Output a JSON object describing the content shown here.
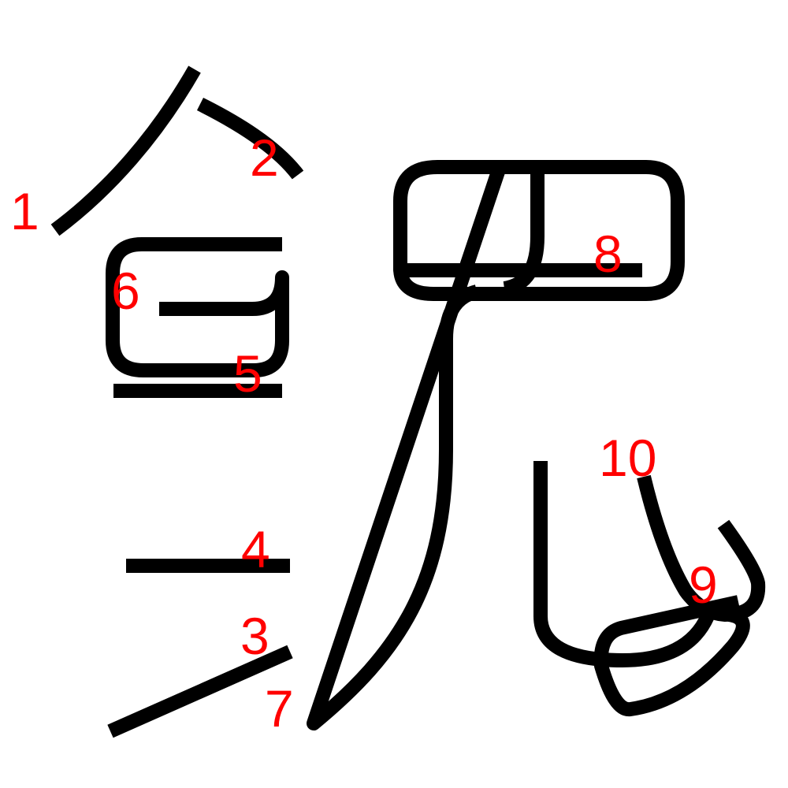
{
  "colors": {
    "background": "#ffffff",
    "stroke": "#000000",
    "label": "#ff0000"
  },
  "strokes": [
    {
      "number": "1"
    },
    {
      "number": "2"
    },
    {
      "number": "3"
    },
    {
      "number": "4"
    },
    {
      "number": "5"
    },
    {
      "number": "6"
    },
    {
      "number": "7"
    },
    {
      "number": "8"
    },
    {
      "number": "9"
    },
    {
      "number": "10"
    }
  ]
}
